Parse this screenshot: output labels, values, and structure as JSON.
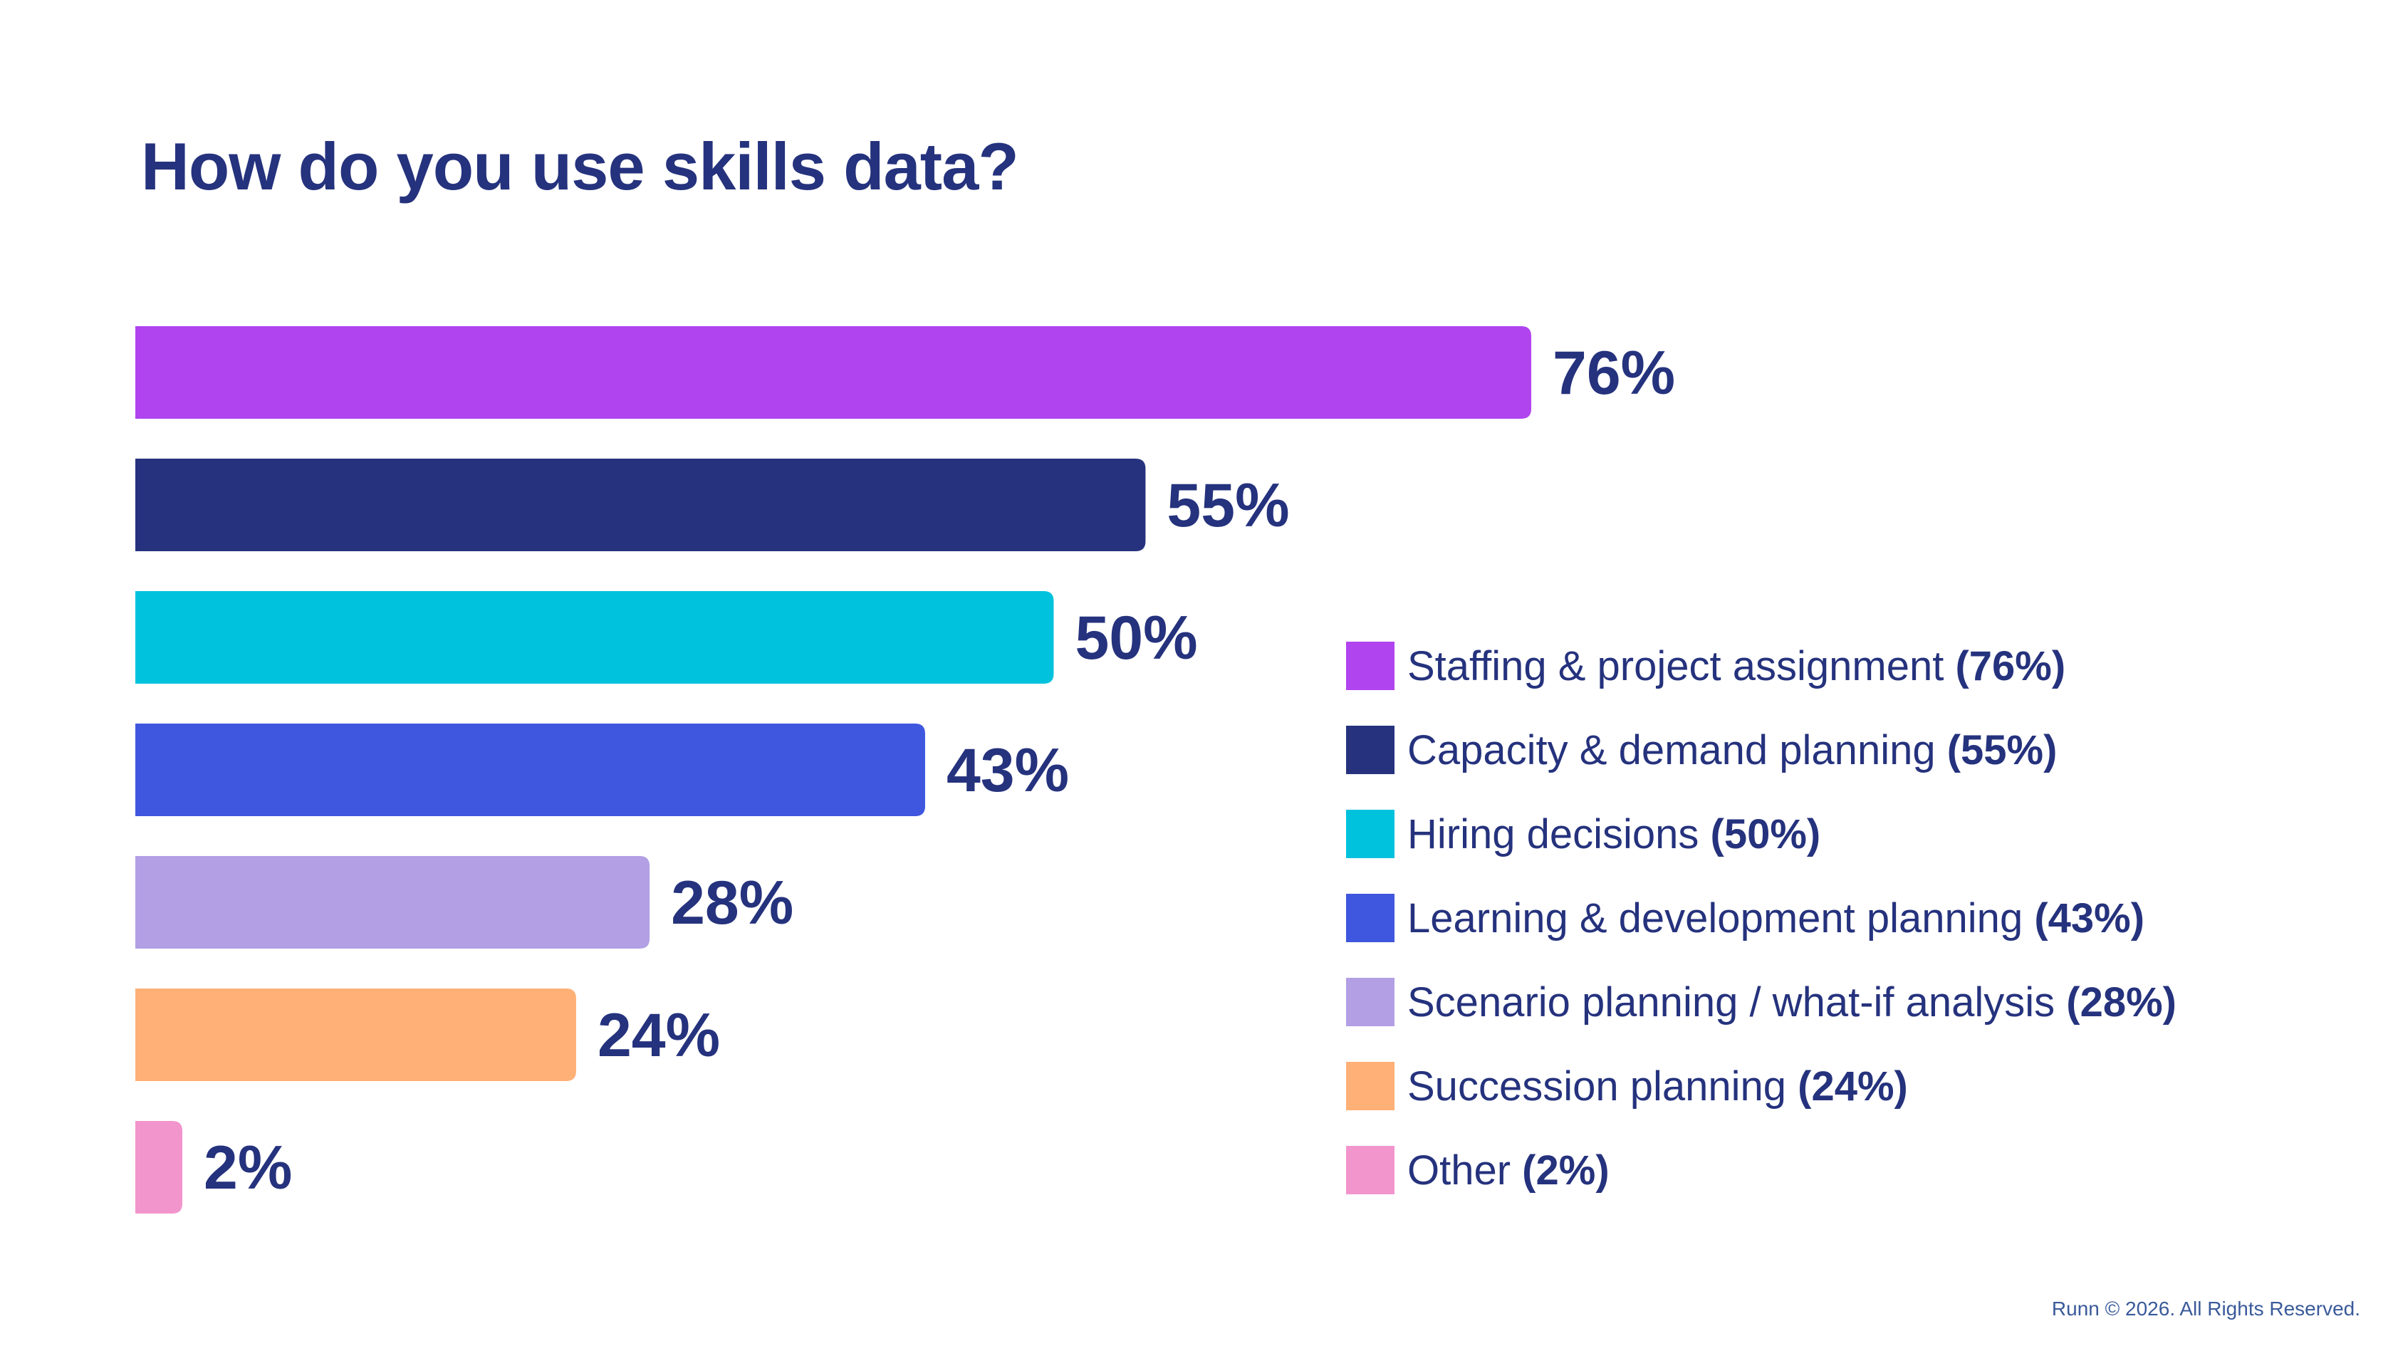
{
  "chart_data": {
    "type": "bar",
    "orientation": "horizontal",
    "title": "How do you use skills data?",
    "categories": [
      "Staffing & project assignment",
      "Capacity & demand planning",
      "Hiring decisions",
      "Learning & development planning",
      "Scenario planning / what-if analysis",
      "Succession planning",
      "Other"
    ],
    "values": [
      76,
      55,
      50,
      43,
      28,
      24,
      2
    ],
    "value_labels": [
      "76%",
      "55%",
      "50%",
      "43%",
      "28%",
      "24%",
      "2%"
    ],
    "legend_values": [
      "(76%)",
      "(55%)",
      "(50%)",
      "(43%)",
      "(28%)",
      "(24%)",
      "(2%)"
    ],
    "colors": [
      "#b044ee",
      "#26327e",
      "#00c2dc",
      "#3f57de",
      "#b29fe4",
      "#feb077",
      "#f295cc"
    ],
    "xlim": [
      0,
      100
    ],
    "xlabel": "",
    "ylabel": "",
    "grid": false,
    "legend_position": "right"
  },
  "footer": "Runn © 2026. All Rights Reserved."
}
